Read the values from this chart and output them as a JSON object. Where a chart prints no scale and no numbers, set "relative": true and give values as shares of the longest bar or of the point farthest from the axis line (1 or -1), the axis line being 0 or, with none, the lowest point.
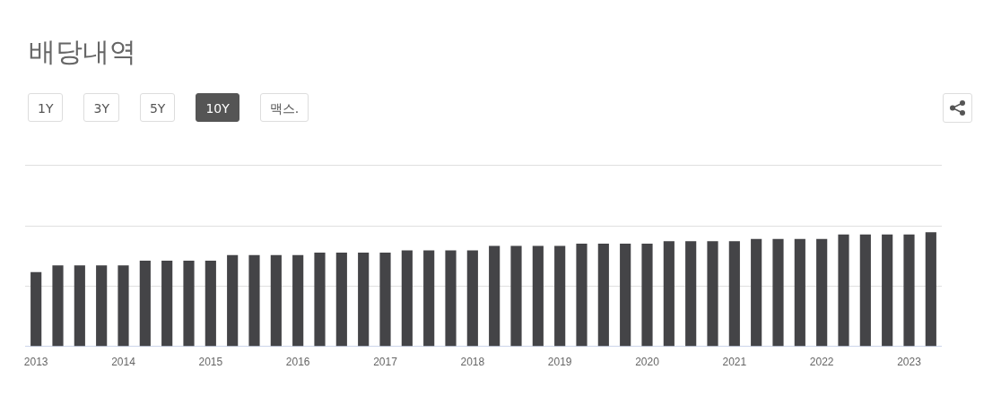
{
  "chart_data": {
    "type": "bar",
    "title": "배당내역",
    "relative": true,
    "legend": false,
    "ref_lines": [
      {
        "axis": "y",
        "value": 0.53,
        "color": "#e0e0e0"
      },
      {
        "axis": "y",
        "value": 1.06,
        "color": "#e0e0e0"
      },
      {
        "axis": "y",
        "value": 1.59,
        "color": "#e0e0e0"
      }
    ],
    "color": "#444447",
    "annotations": [
      "1Y",
      "3Y",
      "5Y",
      "10Y",
      "맥스."
    ],
    "categories": [
      "2013",
      null,
      null,
      null,
      "2014",
      null,
      null,
      null,
      "2015",
      null,
      null,
      null,
      "2016",
      null,
      null,
      null,
      "2017",
      null,
      null,
      null,
      "2018",
      null,
      null,
      null,
      "2019",
      null,
      null,
      null,
      "2020",
      null,
      null,
      null,
      "2021",
      null,
      null,
      null,
      "2022",
      null,
      null,
      null,
      "2023",
      null
    ],
    "values": [
      0.65,
      0.71,
      0.71,
      0.71,
      0.71,
      0.75,
      0.75,
      0.75,
      0.75,
      0.8,
      0.8,
      0.8,
      0.8,
      0.82,
      0.82,
      0.82,
      0.82,
      0.84,
      0.84,
      0.84,
      0.84,
      0.88,
      0.88,
      0.88,
      0.88,
      0.9,
      0.9,
      0.9,
      0.9,
      0.92,
      0.92,
      0.92,
      0.92,
      0.94,
      0.94,
      0.94,
      0.94,
      0.98,
      0.98,
      0.98,
      0.98,
      1
    ]
  }
}
